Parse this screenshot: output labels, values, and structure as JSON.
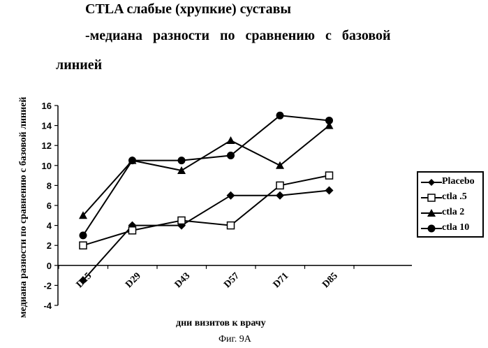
{
  "title": {
    "line1": "CTLA слабые (хрупкие) суставы",
    "line2": "-медиана разности по сравнению с базовой",
    "line3": "линией"
  },
  "caption": "Фиг. 9А",
  "chart_data": {
    "type": "line",
    "categories": [
      "D15",
      "D29",
      "D43",
      "D57",
      "D71",
      "D85"
    ],
    "xlabel": "дни визитов к врачу",
    "ylabel": "медиана разности по сравнению с базовой линией",
    "ylim": [
      -4,
      16
    ],
    "yticks": [
      "-4",
      "-2",
      "0",
      "2",
      "4",
      "6",
      "8",
      "10",
      "12",
      "14",
      "16"
    ],
    "grid": false,
    "legend_position": "right",
    "series": [
      {
        "name": "Placebo",
        "marker": "filled-diamond",
        "points": [
          [
            1,
            -1.5
          ],
          [
            2,
            4
          ],
          [
            3,
            4
          ],
          [
            4,
            7
          ],
          [
            5,
            7
          ],
          [
            6,
            7.5
          ]
        ]
      },
      {
        "name": "ctla .5",
        "marker": "open-square",
        "points": [
          [
            1,
            2
          ],
          [
            2,
            3.5
          ],
          [
            3,
            4.5
          ],
          [
            4,
            4
          ],
          [
            5,
            8
          ],
          [
            6,
            9
          ]
        ]
      },
      {
        "name": "ctla 2",
        "marker": "filled-triangle",
        "points": [
          [
            1,
            5
          ],
          [
            2,
            10.5
          ],
          [
            3,
            9.5
          ],
          [
            4,
            12.5
          ],
          [
            5,
            10
          ],
          [
            6,
            14
          ]
        ]
      },
      {
        "name": "ctla 10",
        "marker": "filled-circle",
        "points": [
          [
            1,
            3
          ],
          [
            2,
            10.5
          ],
          [
            3,
            10.5
          ],
          [
            4,
            11
          ],
          [
            5,
            15
          ],
          [
            6,
            14.5
          ]
        ]
      }
    ]
  }
}
